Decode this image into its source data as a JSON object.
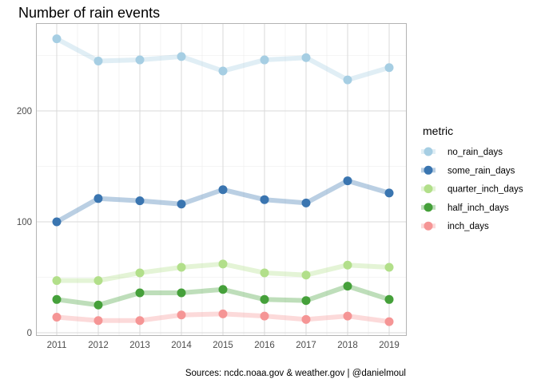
{
  "chart_data": {
    "type": "line",
    "title": "Number of rain events",
    "caption": "Sources: ncdc.noaa.gov & weather.gov | @danielmoul",
    "legend_title": "metric",
    "legend_position": "right",
    "grid": true,
    "xlabel": "",
    "ylabel": "",
    "ylim": [
      0,
      268
    ],
    "y_ticks": [
      0,
      100,
      200
    ],
    "x": [
      2011,
      2012,
      2013,
      2014,
      2015,
      2016,
      2017,
      2018,
      2019
    ],
    "series": [
      {
        "name": "no_rain_days",
        "color": "#a6cee3",
        "values": [
          265,
          245,
          246,
          249,
          236,
          246,
          248,
          228,
          239
        ]
      },
      {
        "name": "some_rain_days",
        "color": "#3a75b0",
        "values": [
          100,
          121,
          119,
          116,
          129,
          120,
          117,
          137,
          126
        ]
      },
      {
        "name": "quarter_inch_days",
        "color": "#b2df8a",
        "values": [
          47,
          47,
          54,
          59,
          62,
          54,
          52,
          61,
          59
        ]
      },
      {
        "name": "half_inch_days",
        "color": "#45a03a",
        "values": [
          30,
          25,
          36,
          36,
          39,
          30,
          29,
          42,
          30
        ]
      },
      {
        "name": "inch_days",
        "color": "#f59595",
        "values": [
          14,
          11,
          11,
          16,
          17,
          15,
          12,
          15,
          10
        ]
      }
    ]
  }
}
